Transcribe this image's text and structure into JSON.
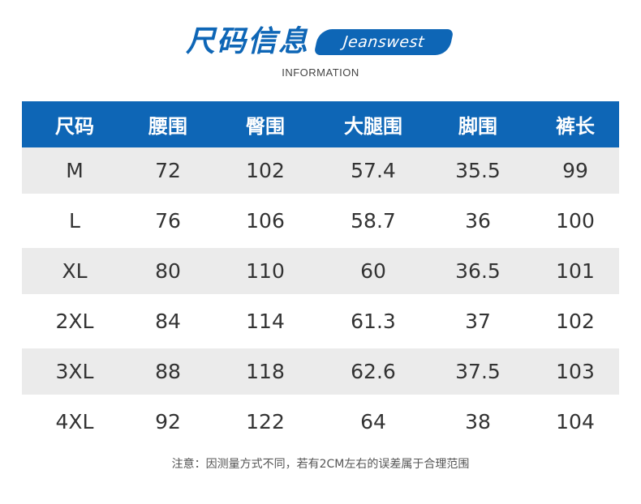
{
  "header": {
    "title": "尺码信息",
    "brand": "Jeanswest",
    "subtitle": "INFORMATION"
  },
  "colors": {
    "accent": "#0e66b6",
    "row_shade": "#ebebeb"
  },
  "table": {
    "columns": [
      "尺码",
      "腰围",
      "臀围",
      "大腿围",
      "脚围",
      "裤长"
    ],
    "rows": [
      [
        "M",
        "72",
        "102",
        "57.4",
        "35.5",
        "99"
      ],
      [
        "L",
        "76",
        "106",
        "58.7",
        "36",
        "100"
      ],
      [
        "XL",
        "80",
        "110",
        "60",
        "36.5",
        "101"
      ],
      [
        "2XL",
        "84",
        "114",
        "61.3",
        "37",
        "102"
      ],
      [
        "3XL",
        "88",
        "118",
        "62.6",
        "37.5",
        "103"
      ],
      [
        "4XL",
        "92",
        "122",
        "64",
        "38",
        "104"
      ]
    ]
  },
  "footer": {
    "note": "注意：因测量方式不同，若有2CM左右的误差属于合理范围"
  }
}
